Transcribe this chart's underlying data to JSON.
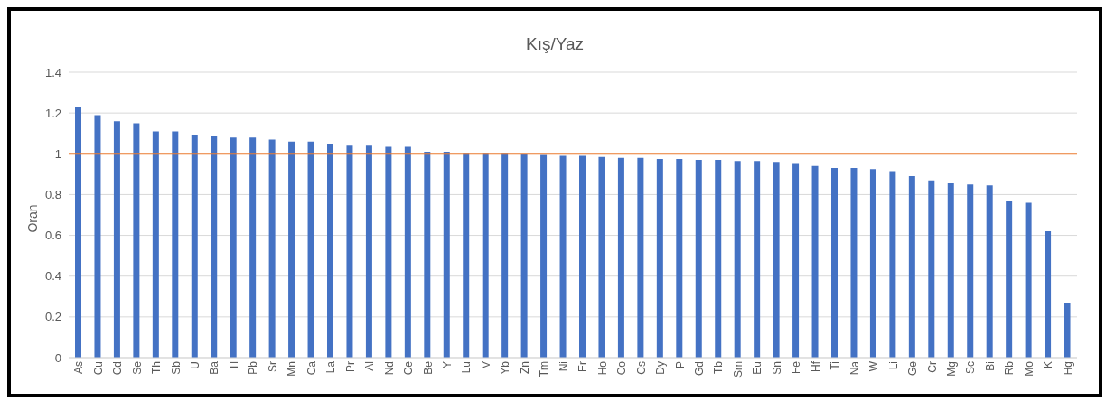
{
  "chart_data": {
    "type": "bar",
    "title": "Kış/Yaz",
    "ylabel": "Oran",
    "categories": [
      "As",
      "Cu",
      "Cd",
      "Se",
      "Th",
      "Sb",
      "U",
      "Ba",
      "Tl",
      "Pb",
      "Sr",
      "Mn",
      "Ca",
      "La",
      "Pr",
      "Al",
      "Nd",
      "Ce",
      "Be",
      "Y",
      "Lu",
      "V",
      "Yb",
      "Zn",
      "Tm",
      "Ni",
      "Er",
      "Ho",
      "Co",
      "Cs",
      "Dy",
      "P",
      "Gd",
      "Tb",
      "Sm",
      "Eu",
      "Sn",
      "Fe",
      "Hf",
      "Ti",
      "Na",
      "W",
      "Li",
      "Ge",
      "Cr",
      "Mg",
      "Sc",
      "Bi",
      "Rb",
      "Mo",
      "K",
      "Hg"
    ],
    "values": [
      1.23,
      1.19,
      1.16,
      1.15,
      1.11,
      1.11,
      1.09,
      1.085,
      1.08,
      1.08,
      1.07,
      1.06,
      1.06,
      1.05,
      1.04,
      1.04,
      1.035,
      1.035,
      1.01,
      1.01,
      1.005,
      1.005,
      1.005,
      1.0,
      0.995,
      0.99,
      0.99,
      0.985,
      0.98,
      0.98,
      0.975,
      0.975,
      0.97,
      0.97,
      0.965,
      0.965,
      0.96,
      0.95,
      0.94,
      0.93,
      0.93,
      0.925,
      0.915,
      0.89,
      0.87,
      0.855,
      0.85,
      0.845,
      0.77,
      0.76,
      0.62,
      0.27
    ],
    "color": "#4472c4",
    "ylim": [
      0,
      1.4
    ],
    "yticks": [
      0,
      0.2,
      0.4,
      0.6,
      0.8,
      1,
      1.2,
      1.4
    ],
    "grid": "y",
    "ref_lines": [
      {
        "axis": "y",
        "value": 1,
        "color": "#ed7d31"
      }
    ]
  }
}
